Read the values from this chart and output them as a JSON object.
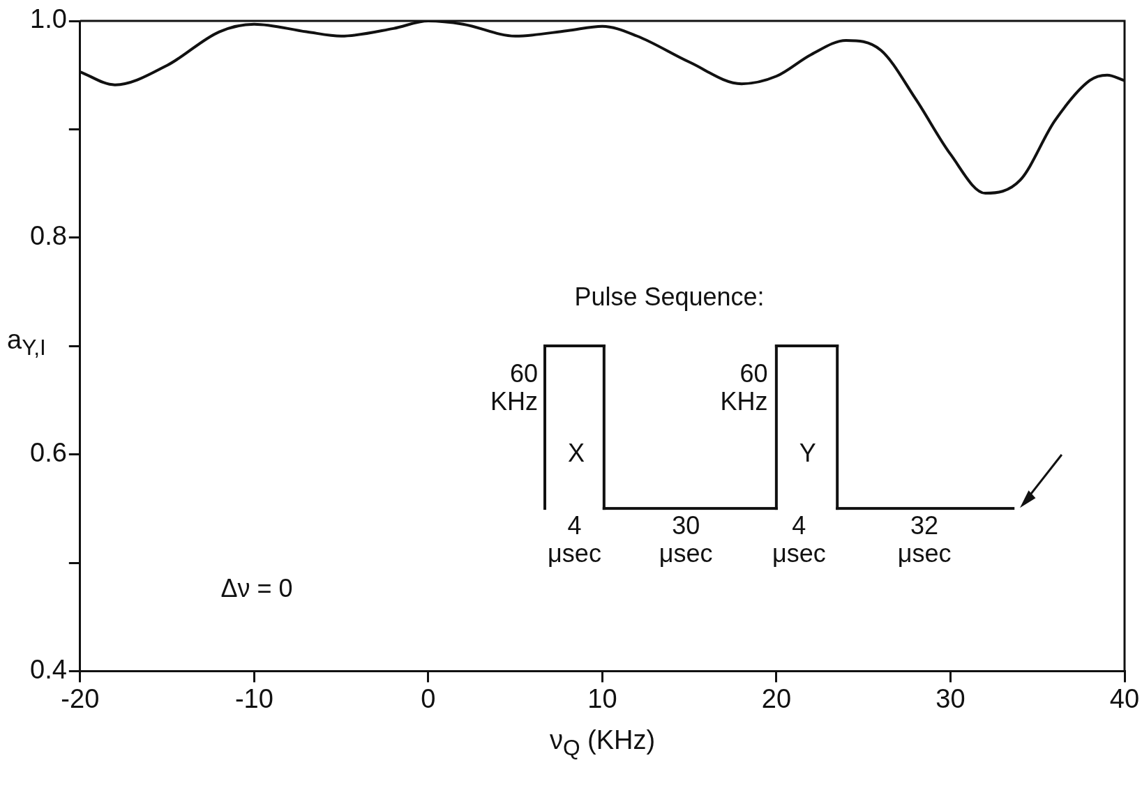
{
  "chart_data": {
    "type": "line",
    "xlabel": "ν$_{Q}$ (KHz)",
    "ylabel": "a$_{Y,I}$",
    "x": [
      -20,
      -18,
      -15,
      -12,
      -10,
      -7,
      -5,
      -2,
      0,
      2,
      5,
      8,
      10,
      12,
      15,
      18,
      20,
      22,
      24,
      26,
      28,
      30,
      32,
      34,
      36,
      38,
      39,
      40
    ],
    "series": [
      {
        "color": "#111111",
        "values": [
          0.953,
          0.941,
          0.959,
          0.99,
          0.997,
          0.99,
          0.986,
          0.993,
          1.0,
          0.997,
          0.986,
          0.991,
          0.995,
          0.986,
          0.962,
          0.942,
          0.949,
          0.969,
          0.982,
          0.973,
          0.928,
          0.877,
          0.841,
          0.853,
          0.908,
          0.945,
          0.95,
          0.945
        ]
      }
    ],
    "xlim": [
      -20,
      40
    ],
    "xticks": [
      -20,
      -10,
      0,
      10,
      20,
      30,
      40
    ],
    "ylim": [
      0.4,
      1.0
    ],
    "yticks": [
      0.4,
      {
        "value": 0.5,
        "label": null
      },
      "0.6",
      {
        "value": 0.7,
        "label": null
      },
      0.8,
      {
        "value": 0.9,
        "label": null
      },
      {
        "value": 1.0,
        "label": "1.0"
      }
    ],
    "grid": false,
    "legend": false,
    "marker": "none",
    "line_style": "solid",
    "annotations": [
      "Δν = 0",
      "Pulse Sequence:",
      "60 KHz",
      "X",
      "60 KHz",
      "Y",
      "4 μsec",
      "30 μsec",
      "4 μsec",
      "32 μsec"
    ]
  }
}
